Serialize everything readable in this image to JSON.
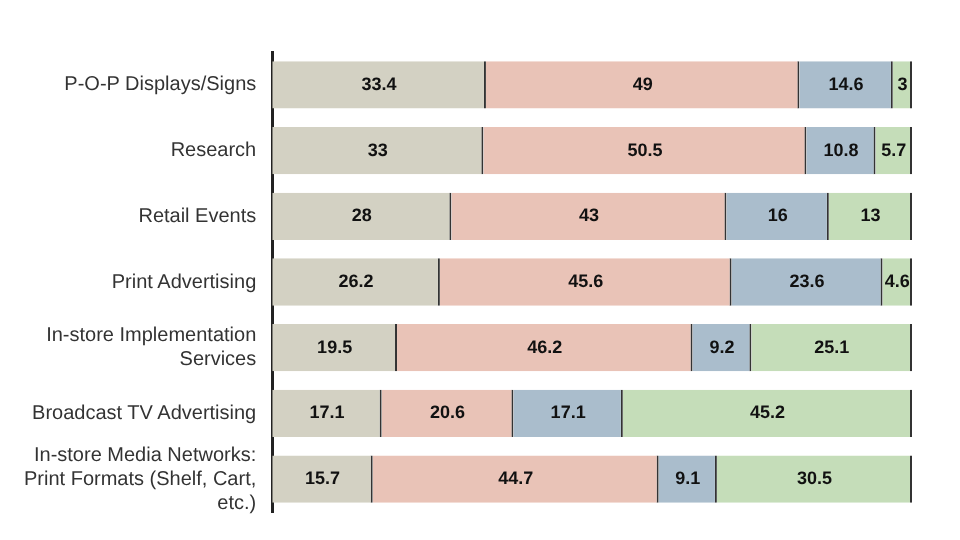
{
  "chart_data": {
    "type": "bar",
    "orientation": "horizontal",
    "stacked": true,
    "data_labels": true,
    "tick_labels": "y",
    "grid": false,
    "legend": false,
    "categories": [
      "P-O-P Displays/Signs",
      "Research",
      "Retail Events",
      "Print Advertising",
      "In-store Implementation Services",
      "Broadcast TV Advertising",
      "In-store Media Networks: Print Formats (Shelf, Cart, etc.)"
    ],
    "xlim": [
      0,
      100
    ],
    "series": [
      {
        "color": "#d3d1c3",
        "values": [
          33.4,
          33,
          28,
          26.2,
          19.5,
          17.1,
          15.7
        ]
      },
      {
        "color": "#e9c3b7",
        "values": [
          49,
          50.5,
          43,
          45.6,
          46.2,
          20.6,
          44.7
        ]
      },
      {
        "color": "#aabdcc",
        "values": [
          14.6,
          10.8,
          16,
          23.6,
          9.2,
          17.1,
          9.1
        ]
      },
      {
        "color": "#c5ddb9",
        "values": [
          3,
          5.7,
          13,
          4.6,
          25.1,
          45.2,
          30.5
        ]
      }
    ]
  }
}
